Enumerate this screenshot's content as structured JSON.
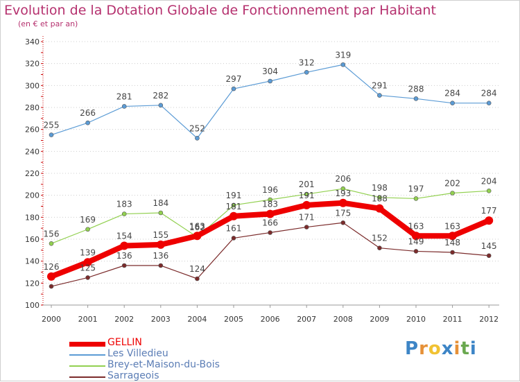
{
  "chart_data": {
    "type": "line",
    "title": "Evolution de la Dotation Globale de Fonctionnement par Habitant",
    "subtitle": "(en € et par an)",
    "x": [
      "2000",
      "2001",
      "2002",
      "2003",
      "2004",
      "2005",
      "2006",
      "2007",
      "2008",
      "2009",
      "2010",
      "2011",
      "2012"
    ],
    "ylim": [
      100,
      340
    ],
    "yticks": [
      100,
      120,
      140,
      160,
      180,
      200,
      220,
      240,
      260,
      280,
      300,
      320,
      340
    ],
    "grid": "horizontal dotted",
    "legend_position": "bottom-left",
    "series": [
      {
        "name": "GELLIN",
        "color": "#ee0000",
        "values": [
          126,
          139,
          154,
          155,
          163,
          181,
          183,
          191,
          193,
          188,
          163,
          163,
          177
        ],
        "labels": [
          "126",
          "139",
          "154",
          "155",
          "163",
          "181",
          "183",
          "191",
          "193",
          "188",
          "163",
          "163",
          "177"
        ]
      },
      {
        "name": "Les Villedieu",
        "color": "#5b9bd5",
        "values": [
          255,
          266,
          281,
          282,
          252,
          297,
          304,
          312,
          319,
          291,
          288,
          284,
          284
        ],
        "labels": [
          "255",
          "266",
          "281",
          "282",
          "252",
          "297",
          "304",
          "312",
          "319",
          "291",
          "288",
          "284",
          "284"
        ]
      },
      {
        "name": "Brey-et-Maison-du-Bois",
        "color": "#92d050",
        "values": [
          156,
          169,
          183,
          184,
          162,
          191,
          196,
          201,
          206,
          198,
          197,
          202,
          204
        ],
        "labels": [
          "156",
          "169",
          "183",
          "184",
          "162",
          "191",
          "196",
          "201",
          "206",
          "198",
          "197",
          "202",
          "204"
        ]
      },
      {
        "name": "Sarrageois",
        "color": "#7b2b2b",
        "values": [
          117,
          125,
          136,
          136,
          124,
          161,
          166,
          171,
          175,
          152,
          149,
          148,
          145
        ],
        "labels": [
          "",
          "125",
          "136",
          "136",
          "124",
          "161",
          "166",
          "171",
          "175",
          "152",
          "149",
          "148",
          "145"
        ]
      }
    ]
  },
  "logo": {
    "letters": [
      "P",
      "r",
      "o",
      "x",
      "i",
      "t",
      "i"
    ],
    "colors": [
      "#3d85c6",
      "#e69138",
      "#f1c232",
      "#3d85c6",
      "#e69138",
      "#6aa84f",
      "#3d85c6"
    ]
  }
}
